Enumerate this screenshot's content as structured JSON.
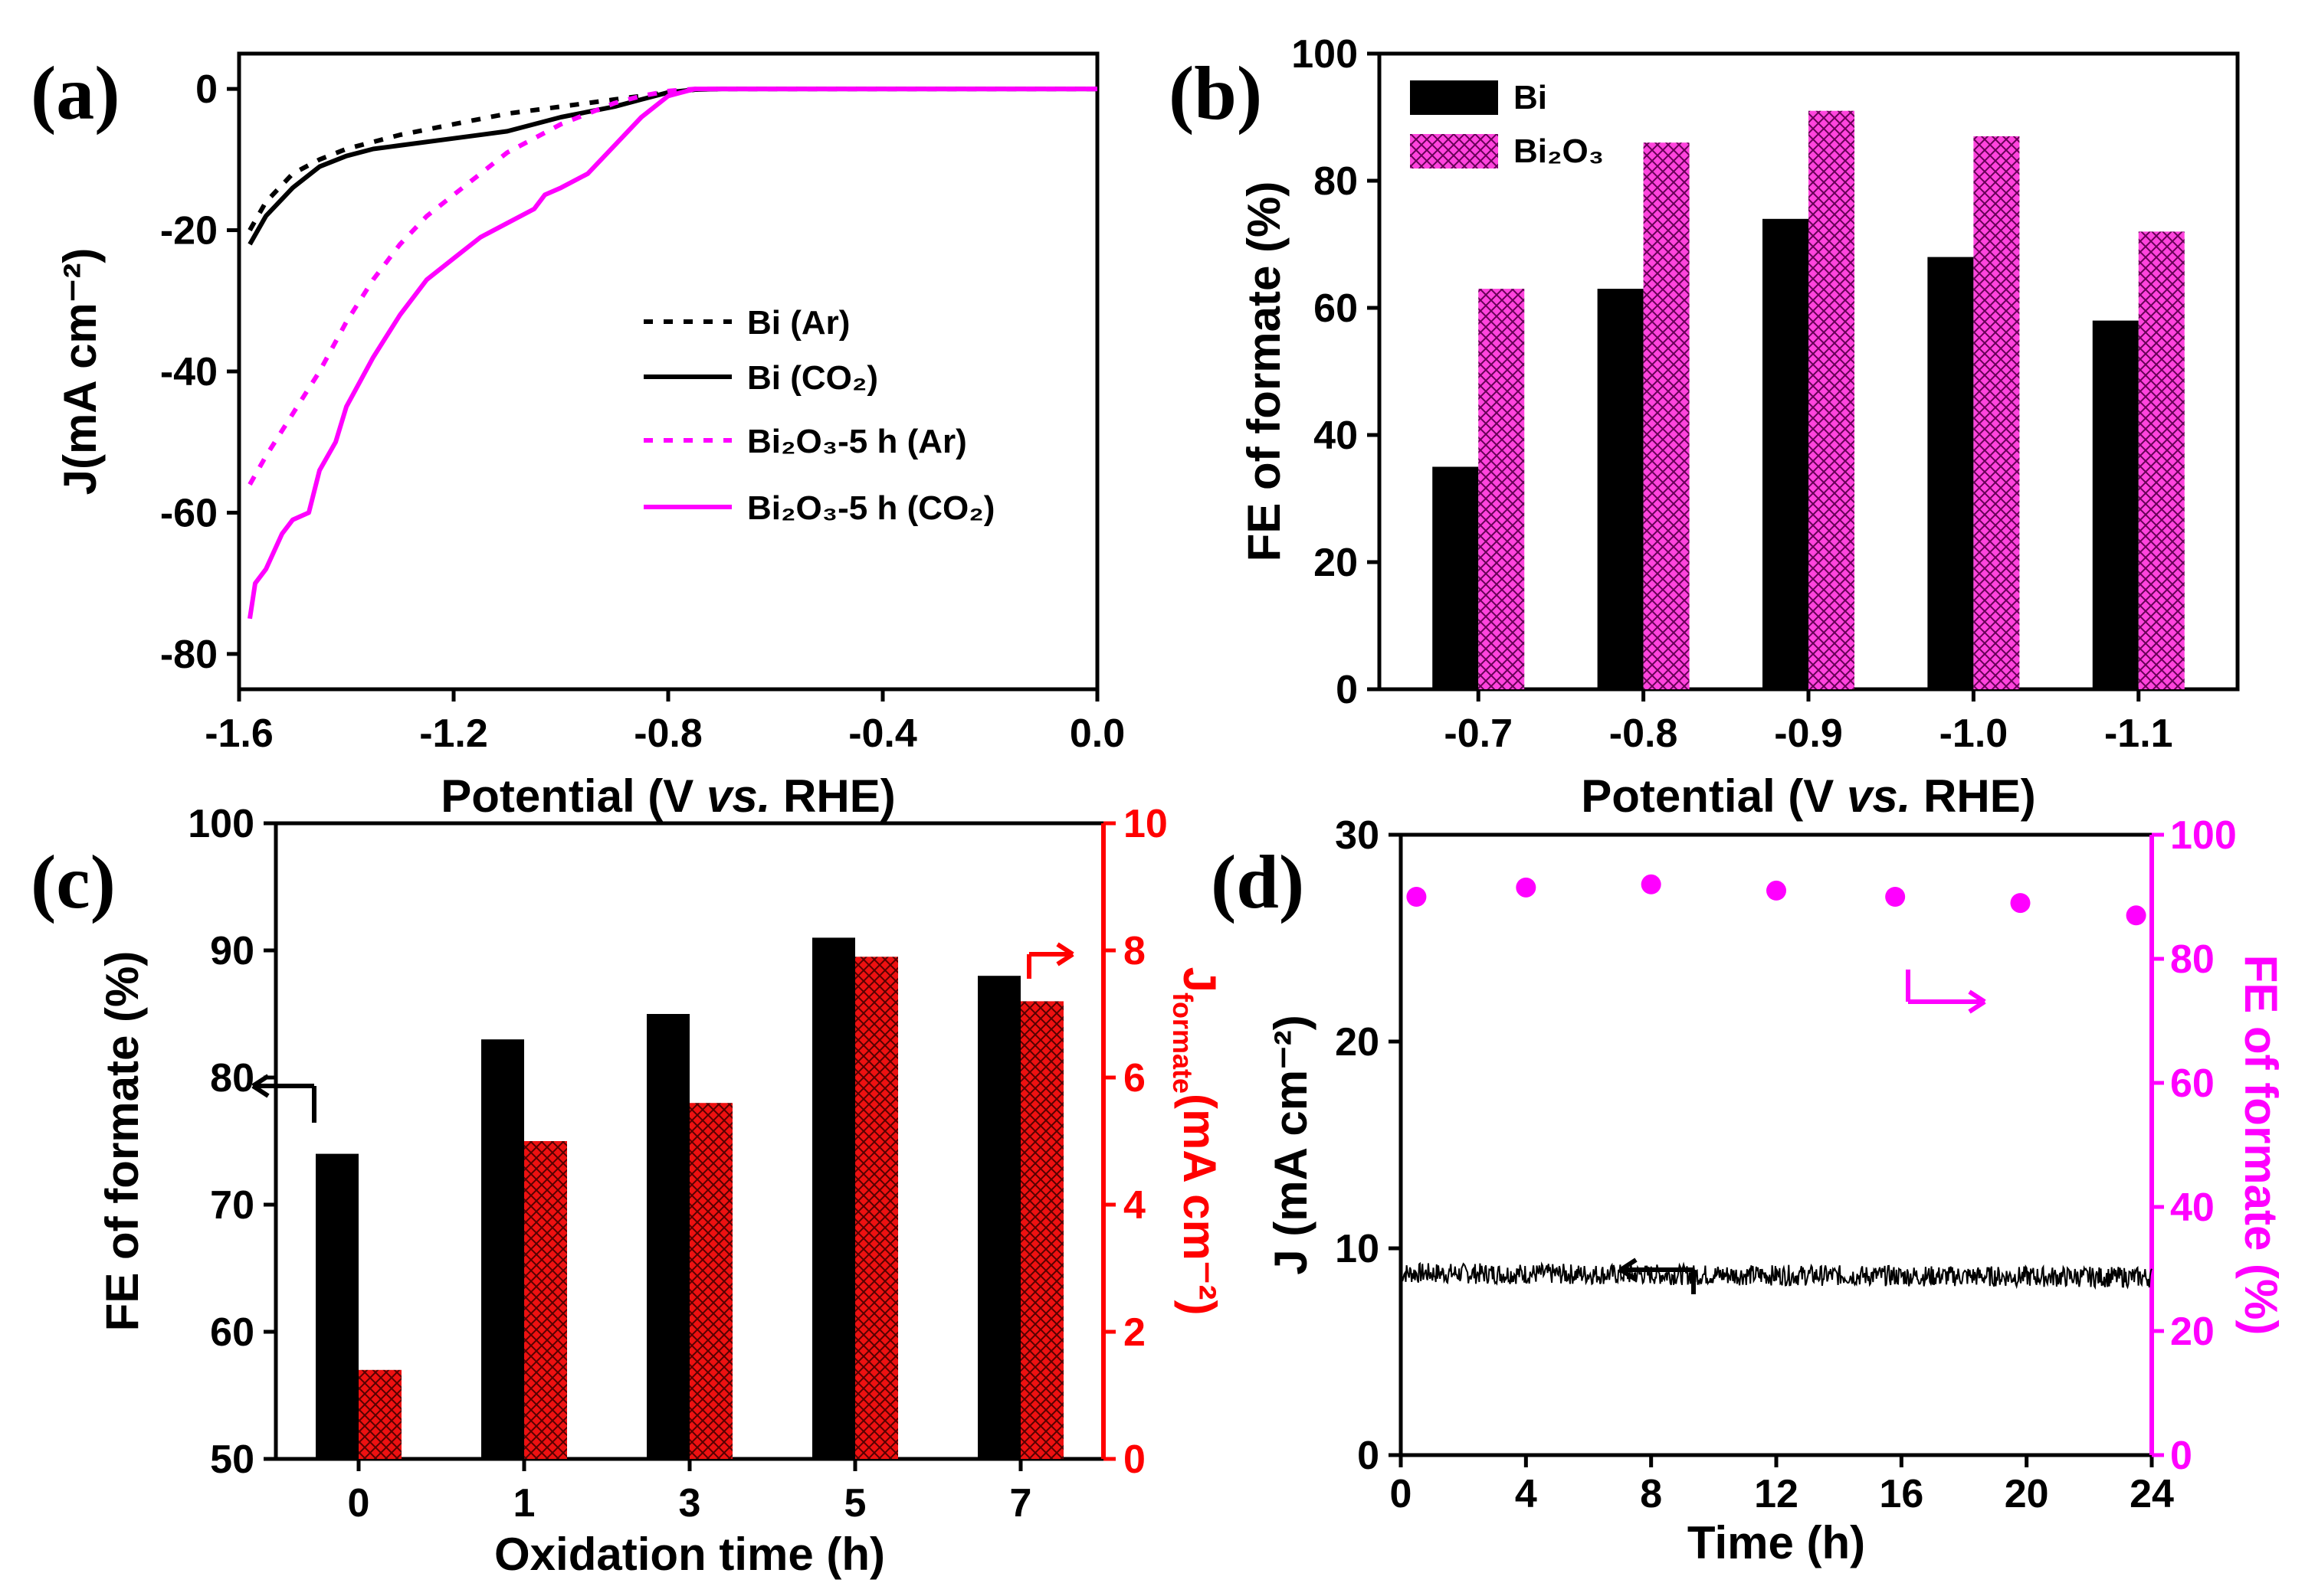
{
  "colors": {
    "black": "#000000",
    "magenta": "#ff00ff",
    "hatch": "#ff00cc",
    "red": "#ff0000",
    "red_bar": "#dd0000"
  },
  "chart_data": [
    {
      "id": "a",
      "type": "line",
      "panel_label": "(a)",
      "xlabel": "Potential (V vs. RHE)",
      "ylabel": "J(mA cm⁻²)",
      "xlim": [
        -1.6,
        0.0
      ],
      "ylim": [
        -85,
        5
      ],
      "xticks": [
        "-1.6",
        "-1.2",
        "-0.8",
        "-0.4",
        "0.0"
      ],
      "xtick_values": [
        -1.6,
        -1.2,
        -0.8,
        -0.4,
        0.0
      ],
      "yticks": [
        "0",
        "-20",
        "-40",
        "-60",
        "-80"
      ],
      "ytick_values": [
        0,
        -20,
        -40,
        -60,
        -80
      ],
      "legend": [
        "Bi (Ar)",
        "Bi (CO₂)",
        "Bi₂O₃-5 h (Ar)",
        "Bi₂O₃-5 h (CO₂)"
      ],
      "series": [
        {
          "name": "Bi (Ar)",
          "color": "#000000",
          "dash": true,
          "x": [
            -1.58,
            -1.55,
            -1.5,
            -1.45,
            -1.4,
            -1.35,
            -1.3,
            -1.2,
            -1.1,
            -1.0,
            -0.9,
            -0.8,
            -0.75,
            -0.7,
            0.0
          ],
          "y": [
            -20,
            -16,
            -12,
            -10,
            -8.5,
            -7.5,
            -6.5,
            -5,
            -3.5,
            -2.5,
            -1.5,
            -0.5,
            -0.1,
            0,
            0
          ]
        },
        {
          "name": "Bi (CO₂)",
          "color": "#000000",
          "dash": false,
          "x": [
            -1.58,
            -1.55,
            -1.5,
            -1.45,
            -1.4,
            -1.35,
            -1.3,
            -1.2,
            -1.1,
            -1.0,
            -0.9,
            -0.85,
            -0.8,
            -0.75,
            -0.7,
            0.0
          ],
          "y": [
            -22,
            -18,
            -14,
            -11,
            -9.5,
            -8.5,
            -8,
            -7,
            -6,
            -4,
            -2.5,
            -1.5,
            -0.5,
            -0.1,
            0,
            0
          ]
        },
        {
          "name": "Bi₂O₃-5 h (Ar)",
          "color": "#ff00ff",
          "dash": true,
          "x": [
            -1.58,
            -1.55,
            -1.5,
            -1.45,
            -1.4,
            -1.35,
            -1.3,
            -1.25,
            -1.2,
            -1.15,
            -1.1,
            -1.05,
            -1.0,
            -0.95,
            -0.9,
            -0.85,
            -0.8,
            -0.75,
            -0.7,
            0.0
          ],
          "y": [
            -56,
            -52,
            -46,
            -40,
            -33,
            -27,
            -22,
            -18,
            -15,
            -12,
            -9,
            -7,
            -5,
            -3.5,
            -2,
            -1,
            -0.3,
            0,
            0,
            0
          ]
        },
        {
          "name": "Bi₂O₃-5 h (CO₂)",
          "color": "#ff00ff",
          "dash": false,
          "x": [
            -1.58,
            -1.57,
            -1.55,
            -1.52,
            -1.5,
            -1.47,
            -1.45,
            -1.42,
            -1.4,
            -1.35,
            -1.3,
            -1.25,
            -1.2,
            -1.15,
            -1.1,
            -1.05,
            -1.03,
            -1.0,
            -0.95,
            -0.9,
            -0.85,
            -0.8,
            -0.75,
            -0.7,
            0.0
          ],
          "y": [
            -75,
            -70,
            -68,
            -63,
            -61,
            -60,
            -54,
            -50,
            -45,
            -38,
            -32,
            -27,
            -24,
            -21,
            -19,
            -17,
            -15,
            -14,
            -12,
            -8,
            -4,
            -1,
            0,
            0,
            0
          ]
        }
      ]
    },
    {
      "id": "b",
      "type": "bar",
      "panel_label": "(b)",
      "xlabel": "Potential (V vs. RHE)",
      "ylabel": "FE of formate (%)",
      "ylim": [
        0,
        100
      ],
      "yticks": [
        "0",
        "20",
        "40",
        "60",
        "80",
        "100"
      ],
      "ytick_values": [
        0,
        20,
        40,
        60,
        80,
        100
      ],
      "categories": [
        "-0.7",
        "-0.8",
        "-0.9",
        "-1.0",
        "-1.1"
      ],
      "legend": [
        "Bi",
        "Bi₂O₃"
      ],
      "series": [
        {
          "name": "Bi",
          "color": "#000000",
          "values": [
            35,
            63,
            74,
            68,
            58
          ]
        },
        {
          "name": "Bi₂O₃",
          "color": "#ff00cc",
          "hatched": true,
          "values": [
            63,
            86,
            91,
            87,
            72
          ]
        }
      ]
    },
    {
      "id": "c",
      "type": "bar",
      "panel_label": "(c)",
      "xlabel": "Oxidation time (h)",
      "ylabel": "FE of formate (%)",
      "ylabel_right_main": "J",
      "ylabel_right_sub": "formate",
      "ylabel_right_unit": "(mA cm⁻²)",
      "ylim": [
        50,
        100
      ],
      "ylim_right": [
        0,
        10
      ],
      "yticks": [
        "50",
        "60",
        "70",
        "80",
        "90",
        "100"
      ],
      "ytick_values": [
        50,
        60,
        70,
        80,
        90,
        100
      ],
      "yticks_right": [
        "0",
        "2",
        "4",
        "6",
        "8",
        "10"
      ],
      "ytick_values_right": [
        0,
        2,
        4,
        6,
        8,
        10
      ],
      "categories": [
        "0",
        "1",
        "3",
        "5",
        "7"
      ],
      "series": [
        {
          "name": "FE of formate",
          "axis": "left",
          "color": "#000000",
          "values": [
            74,
            83,
            85,
            91,
            88
          ]
        },
        {
          "name": "J formate",
          "axis": "right",
          "color": "#dd0000",
          "hatched": true,
          "values": [
            1.4,
            5.0,
            5.6,
            7.9,
            7.2
          ]
        }
      ]
    },
    {
      "id": "d",
      "type": "scatter",
      "panel_label": "(d)",
      "xlabel": "Time (h)",
      "ylabel": "J (mA cm⁻²)",
      "ylabel_right": "FE of formate (%)",
      "xlim": [
        0,
        24
      ],
      "ylim": [
        0,
        30
      ],
      "ylim_right": [
        0,
        100
      ],
      "xticks": [
        "0",
        "4",
        "8",
        "12",
        "16",
        "20",
        "24"
      ],
      "xtick_values": [
        0,
        4,
        8,
        12,
        16,
        20,
        24
      ],
      "yticks": [
        "0",
        "10",
        "20",
        "30"
      ],
      "ytick_values": [
        0,
        10,
        20,
        30
      ],
      "yticks_right": [
        "0",
        "20",
        "40",
        "60",
        "80",
        "100"
      ],
      "ytick_values_right": [
        0,
        20,
        40,
        60,
        80,
        100
      ],
      "current": {
        "name": "J",
        "color": "#000000",
        "mean": 8.8,
        "noise": 0.5,
        "drift_end": 8.6
      },
      "fe_points": {
        "name": "FE of formate",
        "color": "#ff00ff",
        "x": [
          0.5,
          4,
          8,
          12,
          15.8,
          19.8,
          23.5
        ],
        "y": [
          90,
          91.5,
          92,
          91,
          90,
          89,
          87
        ]
      }
    }
  ]
}
